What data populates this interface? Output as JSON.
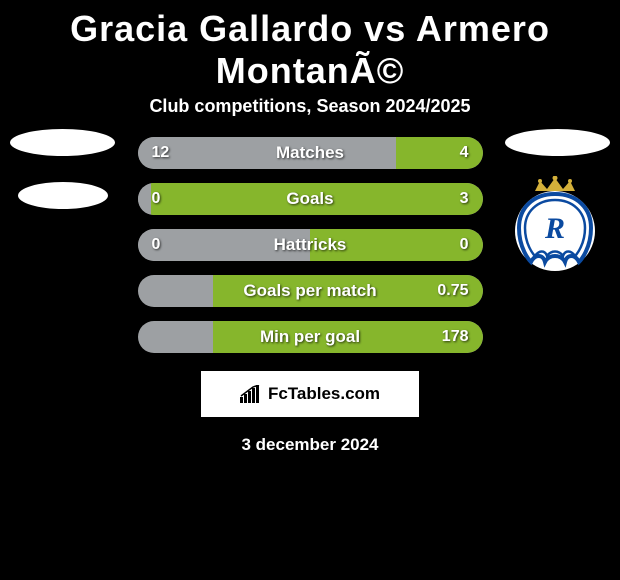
{
  "title": "Gracia Gallardo vs Armero MontanÃ©",
  "subtitle": "Club competitions, Season 2024/2025",
  "colors": {
    "left_fill": "#9da0a3",
    "right_fill": "#86b62c",
    "bar_base": "#333333"
  },
  "bars": [
    {
      "label": "Matches",
      "left": "12",
      "right": "4",
      "left_pct": 75,
      "right_pct": 25
    },
    {
      "label": "Goals",
      "left": "0",
      "right": "3",
      "left_pct": 4,
      "right_pct": 96
    },
    {
      "label": "Hattricks",
      "left": "0",
      "right": "0",
      "left_pct": 50,
      "right_pct": 50
    },
    {
      "label": "Goals per match",
      "left": "",
      "right": "0.75",
      "left_pct": 0,
      "right_pct": 78
    },
    {
      "label": "Min per goal",
      "left": "",
      "right": "178",
      "left_pct": 0,
      "right_pct": 78
    }
  ],
  "attribution": "FcTables.com",
  "date": "3 december 2024",
  "club_logo": {
    "crown_color": "#d4b03a",
    "shield_fill": "#ffffff",
    "shield_stroke": "#0b4aa0",
    "letter": "R",
    "letter_color": "#0b4aa0"
  }
}
